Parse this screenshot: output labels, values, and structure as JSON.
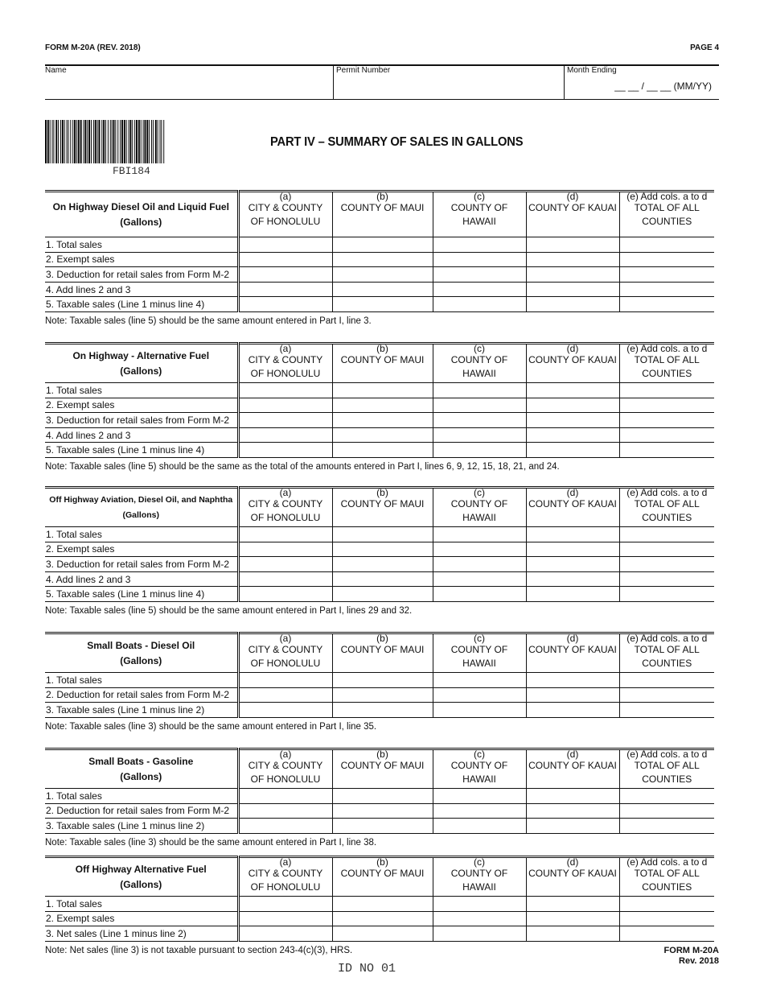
{
  "header": {
    "form_id": "FORM M-20A (REV. 2018)",
    "page": "PAGE 4",
    "name_label": "Name",
    "permit_label": "Permit Number",
    "month_label": "Month Ending",
    "month_format": "__ __ / __ __ (MM/YY)"
  },
  "barcode_text": "FBI184",
  "part_title": "PART IV – SUMMARY OF SALES IN GALLONS",
  "columns": [
    [
      "(a)",
      "CITY & COUNTY",
      "OF HONOLULU"
    ],
    [
      "(b)",
      "COUNTY OF MAUI",
      ""
    ],
    [
      "(c)",
      "COUNTY OF",
      "HAWAII"
    ],
    [
      "(d)",
      "COUNTY OF KAUAI",
      ""
    ],
    [
      "(e) Add cols. a to d",
      "TOTAL OF ALL",
      "COUNTIES"
    ]
  ],
  "sections": [
    {
      "title": "On Highway Diesel Oil and Liquid Fuel",
      "unit": "(Gallons)",
      "rows": [
        "1. Total sales",
        "2. Exempt sales",
        "3. Deduction for retail sales from Form M-2",
        "4. Add lines 2 and 3",
        "5. Taxable sales (Line 1 minus line 4)"
      ],
      "note": "Note: Taxable sales (line 5) should be the same amount entered in Part I, line 3."
    },
    {
      "title": "On Highway - Alternative Fuel",
      "unit": "(Gallons)",
      "rows": [
        "1. Total sales",
        "2. Exempt sales",
        "3. Deduction for retail sales from Form M-2",
        "4. Add lines 2 and 3",
        "5. Taxable sales (Line 1 minus line 4)"
      ],
      "note": "Note: Taxable sales (line 5) should be the same as the total of the amounts entered in Part I, lines 6, 9, 12, 15, 18, 21, and 24."
    },
    {
      "title": "Off Highway Aviation, Diesel Oil, and Naphtha",
      "unit": "(Gallons)",
      "rows": [
        "1. Total sales",
        "2. Exempt sales",
        "3. Deduction for retail sales from Form M-2",
        "4. Add lines 2 and 3",
        "5. Taxable sales (Line 1 minus line 4)"
      ],
      "note": "Note: Taxable sales (line 5) should be the same amount entered in Part I, lines 29 and 32."
    },
    {
      "title": "Small Boats - Diesel Oil",
      "unit": "(Gallons)",
      "rows": [
        "1. Total sales",
        "2. Deduction for retail sales from Form M-2",
        "3. Taxable sales (Line 1 minus line 2)"
      ],
      "note": "Note: Taxable sales (line 3) should be the same amount entered in Part I, line 35."
    },
    {
      "title": "Small Boats - Gasoline",
      "unit": "(Gallons)",
      "rows": [
        "1. Total sales",
        "2. Deduction for retail sales from Form M-2",
        "3. Taxable sales (Line 1 minus line 2)"
      ],
      "note": "Note: Taxable sales (line 3) should be the same amount entered in Part I, line 38."
    },
    {
      "title": "Off Highway Alternative Fuel",
      "unit": "(Gallons)",
      "rows": [
        "1. Total sales",
        "2. Exempt sales",
        "3. Net sales (Line 1 minus line 2)"
      ],
      "note": "Note: Net sales (line 3) is not taxable pursuant to section 243-4(c)(3), HRS."
    }
  ],
  "footer": {
    "form": "FORM M-20A",
    "rev": "Rev. 2018",
    "id_no": "ID NO 01"
  }
}
